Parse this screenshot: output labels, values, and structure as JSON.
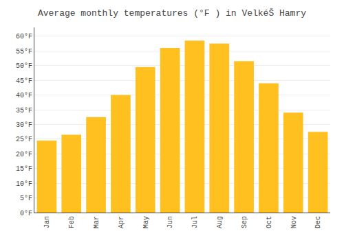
{
  "chart_data": {
    "type": "bar",
    "title": "Average monthly temperatures (°F ) in VelkéŠ Hamry",
    "categories": [
      "Jan",
      "Feb",
      "Mar",
      "Apr",
      "May",
      "Jun",
      "Jul",
      "Aug",
      "Sep",
      "Oct",
      "Nov",
      "Dec"
    ],
    "values": [
      24.5,
      26.5,
      32.5,
      40.0,
      49.5,
      56.0,
      58.5,
      57.5,
      51.5,
      44.0,
      34.0,
      27.5
    ],
    "color": "#FFC020",
    "ylim": [
      0,
      63
    ],
    "yticks": [
      {
        "value": 0,
        "label": "0°F"
      },
      {
        "value": 5,
        "label": "5°F"
      },
      {
        "value": 10,
        "label": "10°F"
      },
      {
        "value": 15,
        "label": "15°F"
      },
      {
        "value": 20,
        "label": "20°F"
      },
      {
        "value": 25,
        "label": "25°F"
      },
      {
        "value": 30,
        "label": "30°F"
      },
      {
        "value": 35,
        "label": "35°F"
      },
      {
        "value": 40,
        "label": "40°F"
      },
      {
        "value": 45,
        "label": "45°F"
      },
      {
        "value": 50,
        "label": "50°F"
      },
      {
        "value": 55,
        "label": "55°F"
      },
      {
        "value": 60,
        "label": "60°F"
      }
    ],
    "grid": true
  }
}
